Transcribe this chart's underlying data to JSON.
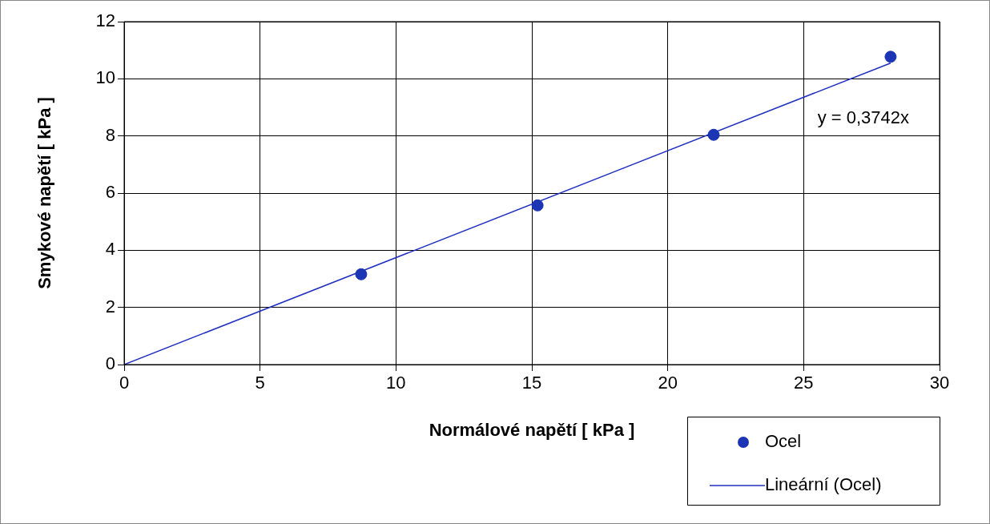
{
  "chart_data": {
    "type": "scatter",
    "xlabel": "Normálové napětí [ kPa ]",
    "ylabel": "Smykové napětí [ kPa ]",
    "xlim": [
      0,
      30
    ],
    "xticks": [
      0,
      5,
      10,
      15,
      20,
      25,
      30
    ],
    "ylim": [
      0,
      12
    ],
    "yticks": [
      0,
      2,
      4,
      6,
      8,
      10,
      12
    ],
    "grid": true,
    "legend": "bottom right",
    "marker": "circle",
    "series": [
      {
        "name": "Ocel",
        "color": "#1c35b5",
        "x": [
          8.72,
          15.21,
          21.69,
          28.2
        ],
        "values": [
          3.16,
          5.57,
          8.04,
          10.77
        ]
      },
      {
        "name": "Lineární (Ocel)",
        "type": "line",
        "color": "#1f2fbf",
        "marker": "none",
        "line_style": "solid",
        "x": [
          0,
          28.2
        ],
        "values": [
          0,
          10.55
        ]
      }
    ],
    "annotations": [
      "y = 0,3742x"
    ]
  }
}
